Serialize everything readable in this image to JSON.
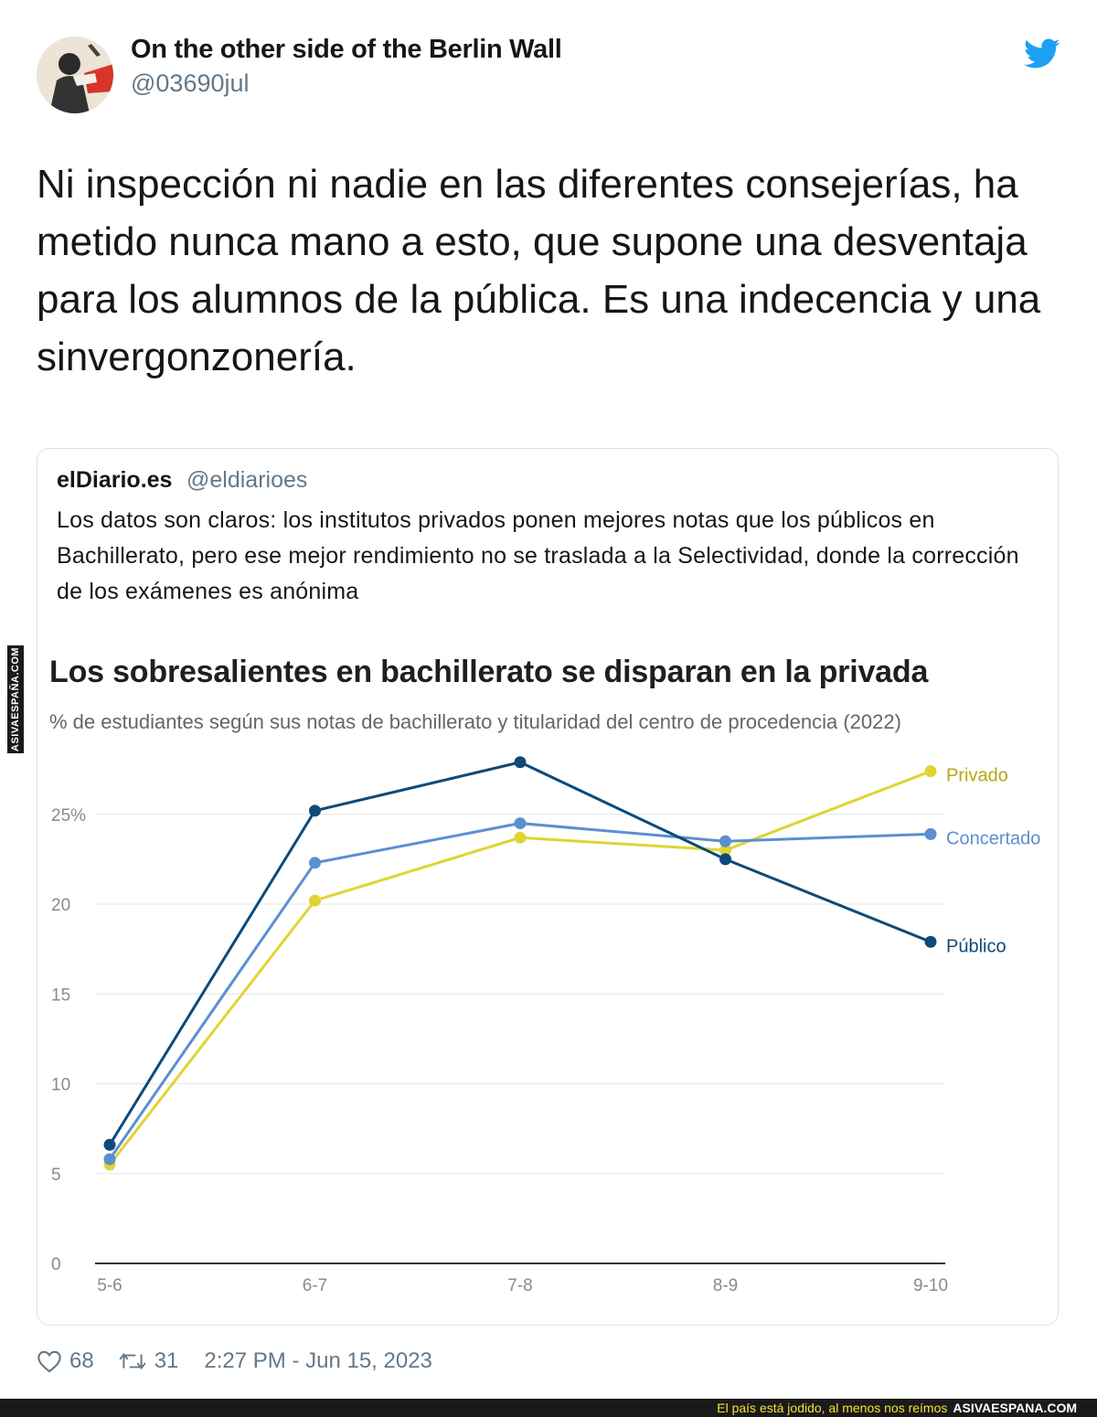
{
  "tweet": {
    "author_name": "On the other side of the Berlin Wall",
    "author_handle": "@03690jul",
    "text": "Ni inspección ni nadie en las diferentes consejerías, ha metido nunca mano a esto, que supone una desventaja para los alumnos de la pública. Es una indecencia y una sinvergonzonería.",
    "likes": "68",
    "retweets": "31",
    "timestamp": "2:27 PM - Jun 15, 2023"
  },
  "quote": {
    "author_name": "elDiario.es",
    "author_handle": "@eldiarioes",
    "text": "Los datos son claros: los institutos privados ponen mejores notas que los públicos en Bachillerato, pero ese mejor rendimiento no se traslada a la Selectividad, donde la corrección de los exámenes es anónima"
  },
  "chart_data": {
    "type": "line",
    "title": "Los sobresalientes en bachillerato se disparan en la privada",
    "subtitle": "% de estudiantes según sus notas de bachillerato y titularidad del centro de procedencia (2022)",
    "categories": [
      "5-6",
      "6-7",
      "7-8",
      "8-9",
      "9-10"
    ],
    "y_ticks": [
      "0",
      "5",
      "10",
      "15",
      "20",
      "25%"
    ],
    "ylim": [
      0,
      28
    ],
    "grid": true,
    "legend": "inline-right",
    "series": [
      {
        "name": "Público",
        "color": "#0d4a7a",
        "values": [
          6.6,
          25.2,
          27.9,
          22.5,
          17.9
        ]
      },
      {
        "name": "Concertado",
        "color": "#5b8fd0",
        "values": [
          5.8,
          22.3,
          24.5,
          23.5,
          23.9
        ]
      },
      {
        "name": "Privado",
        "color": "#e0d432",
        "values": [
          5.5,
          20.2,
          23.7,
          23.0,
          27.4
        ]
      }
    ]
  },
  "watermark": {
    "side": "ASIVAESPAÑA.COM",
    "tagline": "El país está jodido, al menos nos reímos",
    "site": "ASIVAESPANA.COM"
  }
}
